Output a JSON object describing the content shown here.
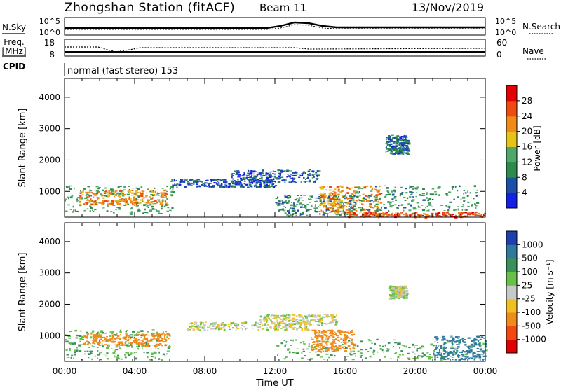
{
  "header": {
    "title": "Zhongshan Station (fitACF)",
    "beam": "Beam 11",
    "date": "13/Nov/2019"
  },
  "summary": {
    "left_labels": [
      "N.Sky",
      "Freq.",
      "[MHz]",
      "CPID"
    ],
    "right_labels": [
      "N.Search",
      "Nave"
    ],
    "noise_ticks_left": [
      "10^5",
      "10^0"
    ],
    "noise_ticks_right": [
      "10^5",
      "10^0"
    ],
    "freq_ticks": [
      "18",
      "8"
    ],
    "nave_ticks": [
      "60",
      "0"
    ],
    "cpid_text": "normal (fast stereo) 153"
  },
  "axes": {
    "xlabel": "Time UT",
    "ylabel": "Slant Range [km]",
    "x_ticks": [
      "00:00",
      "04:00",
      "08:00",
      "12:00",
      "16:00",
      "20:00",
      "00:00"
    ],
    "y_ticks": [
      "1000",
      "2000",
      "3000",
      "4000"
    ],
    "xlim_hours": [
      0,
      24
    ],
    "ylim_km": [
      180,
      4600
    ]
  },
  "power_colorbar": {
    "label": "Power [dB]",
    "ticks": [
      "4",
      "8",
      "12",
      "16",
      "20",
      "24",
      "28"
    ],
    "colors": [
      "#1420e6",
      "#1b4fa8",
      "#2b8c4a",
      "#4fa86a",
      "#e8c21c",
      "#f08a18",
      "#f04a10",
      "#e40000"
    ]
  },
  "velocity_colorbar": {
    "label": "Velocity [m s⁻¹]",
    "ticks": [
      "1000",
      "500",
      "100",
      "25",
      "-25",
      "-100",
      "-500",
      "-1000"
    ],
    "colors": [
      "#1f3fb0",
      "#2f7a9a",
      "#3a8f5a",
      "#66c04a",
      "#c8c8c8",
      "#f0c020",
      "#f08a18",
      "#f04a10",
      "#e00000"
    ]
  },
  "chart_data": [
    {
      "type": "heatmap",
      "title": "",
      "xlabel": "Time UT",
      "ylabel": "Slant Range [km]",
      "colorbar": "Power [dB]",
      "regions": [
        {
          "t": [
            0.0,
            6.2
          ],
          "r": [
            300,
            1200
          ],
          "value": 12
        },
        {
          "t": [
            0.8,
            5.8
          ],
          "r": [
            600,
            1050
          ],
          "value": 22
        },
        {
          "t": [
            6.0,
            12.0
          ],
          "r": [
            1150,
            1400
          ],
          "value": 6
        },
        {
          "t": [
            9.5,
            14.5
          ],
          "r": [
            1300,
            1700
          ],
          "value": 6
        },
        {
          "t": [
            12.0,
            16.5
          ],
          "r": [
            250,
            900
          ],
          "value": 10
        },
        {
          "t": [
            14.5,
            18.0
          ],
          "r": [
            300,
            1200
          ],
          "value": 22
        },
        {
          "t": [
            16.0,
            24.0
          ],
          "r": [
            200,
            350
          ],
          "value": 26
        },
        {
          "t": [
            16.5,
            23.5
          ],
          "r": [
            400,
            1200
          ],
          "value": 11
        },
        {
          "t": [
            18.3,
            19.6
          ],
          "r": [
            2200,
            2800
          ],
          "value": 7
        }
      ]
    },
    {
      "type": "heatmap",
      "title": "",
      "xlabel": "Time UT",
      "ylabel": "Slant Range [km]",
      "colorbar": "Velocity [m s⁻¹]",
      "regions": [
        {
          "t": [
            0.0,
            6.0
          ],
          "r": [
            250,
            1200
          ],
          "value": 100
        },
        {
          "t": [
            1.0,
            6.0
          ],
          "r": [
            700,
            1100
          ],
          "value": -200
        },
        {
          "t": [
            7.0,
            14.0
          ],
          "r": [
            1200,
            1450
          ],
          "value": 0
        },
        {
          "t": [
            11.0,
            15.5
          ],
          "r": [
            1350,
            1700
          ],
          "value": 0
        },
        {
          "t": [
            12.0,
            24.0
          ],
          "r": [
            250,
            900
          ],
          "value": 100
        },
        {
          "t": [
            14.0,
            16.5
          ],
          "r": [
            500,
            1200
          ],
          "value": -300
        },
        {
          "t": [
            21.0,
            24.0
          ],
          "r": [
            250,
            1000
          ],
          "value": 600
        },
        {
          "t": [
            18.5,
            19.5
          ],
          "r": [
            2200,
            2600
          ],
          "value": 0
        }
      ]
    }
  ]
}
